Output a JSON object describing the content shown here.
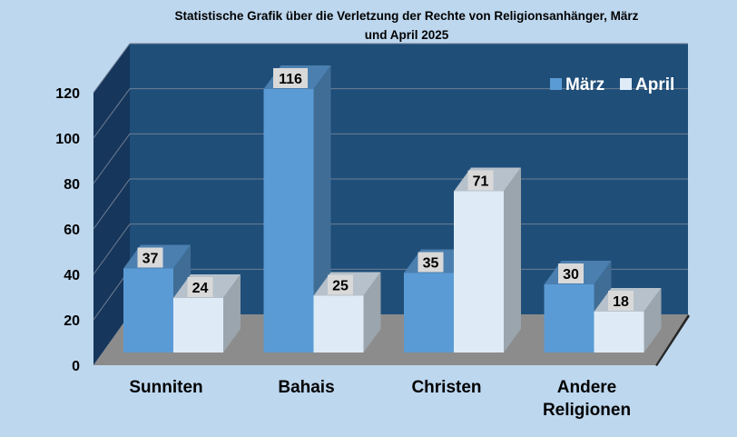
{
  "chart_data": {
    "type": "bar",
    "title": "Statistische Grafik über die Verletzung der Rechte von Religionsanhänger, März und April 2025",
    "title_lines": [
      "Statistische Grafik über die Verletzung der Rechte von Religionsanhänger, März",
      "und April 2025"
    ],
    "categories": [
      "Sunniten",
      "Bahais",
      "Christen",
      "Andere Religionen"
    ],
    "category_lines": [
      [
        "Sunniten"
      ],
      [
        "Bahais"
      ],
      [
        "Christen"
      ],
      [
        "Andere",
        "Religionen"
      ]
    ],
    "series": [
      {
        "name": "März",
        "values": [
          37,
          116,
          35,
          30
        ],
        "color": "#5b9bd5"
      },
      {
        "name": "April",
        "values": [
          24,
          25,
          71,
          18
        ],
        "color": "#deebf7"
      }
    ],
    "ylim": [
      0,
      120
    ],
    "yticks": [
      0,
      20,
      40,
      60,
      80,
      100,
      120
    ],
    "grid": true,
    "legend": "top-right",
    "style": "3d-clustered-bar",
    "colors": {
      "background": "#bdd7ee",
      "back_wall": "#1f4e79",
      "side_wall": "#16365c",
      "floor": "#8c8c8c"
    }
  }
}
